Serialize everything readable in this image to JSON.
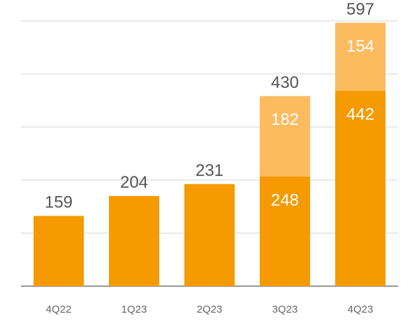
{
  "chart_data": {
    "type": "stacked_bar",
    "categories": [
      "4Q22",
      "1Q23",
      "2Q23",
      "3Q23",
      "4Q23"
    ],
    "series": [
      {
        "color": "#f59a00",
        "values": [
          159,
          204,
          231,
          248,
          442
        ]
      },
      {
        "color": "#fdbb5f",
        "values": [
          null,
          null,
          null,
          182,
          154
        ]
      }
    ],
    "totals": [
      159,
      204,
      231,
      430,
      597
    ],
    "ylim": [
      0,
      600
    ],
    "yticks": [
      0,
      120,
      240,
      360,
      480,
      600
    ],
    "grid": true
  }
}
